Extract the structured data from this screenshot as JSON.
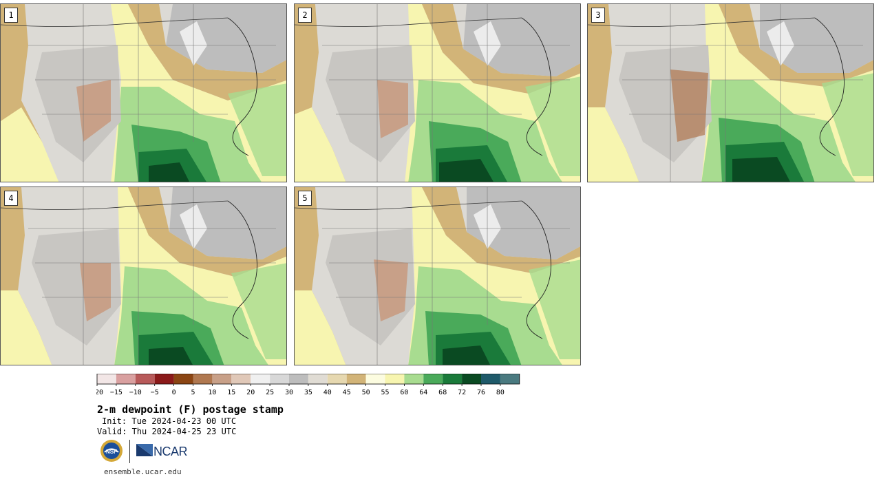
{
  "panels": [
    {
      "label": "1"
    },
    {
      "label": "2"
    },
    {
      "label": "3"
    },
    {
      "label": "4"
    },
    {
      "label": "5"
    }
  ],
  "colorbar": {
    "ticks": [
      "−20",
      "−15",
      "−10",
      "−5",
      "0",
      "5",
      "10",
      "15",
      "20",
      "25",
      "30",
      "35",
      "40",
      "45",
      "50",
      "55",
      "60",
      "64",
      "68",
      "72",
      "76",
      "80"
    ],
    "colors": [
      "#f2e6e6",
      "#d9a0a0",
      "#b85a5a",
      "#8b1a1a",
      "#8b4513",
      "#b07850",
      "#c8a088",
      "#e0c8b8",
      "#f0f0f0",
      "#d8d8d8",
      "#bdbdbd",
      "#e0dcd4",
      "#e6d8b0",
      "#d2b478",
      "#fcfce0",
      "#f7f5b0",
      "#a8dc90",
      "#4aaa5a",
      "#1a7a3a",
      "#0a4a22",
      "#1f5a6a",
      "#4a7a80"
    ]
  },
  "title": "2-m dewpoint (F) postage stamp",
  "init": "Init: Tue 2024-04-23 00 UTC",
  "valid": "Valid: Thu 2024-04-25 23 UTC",
  "logos": {
    "nsf": "NSF",
    "ncar": "NCAR"
  },
  "site": "ensemble.ucar.edu"
}
